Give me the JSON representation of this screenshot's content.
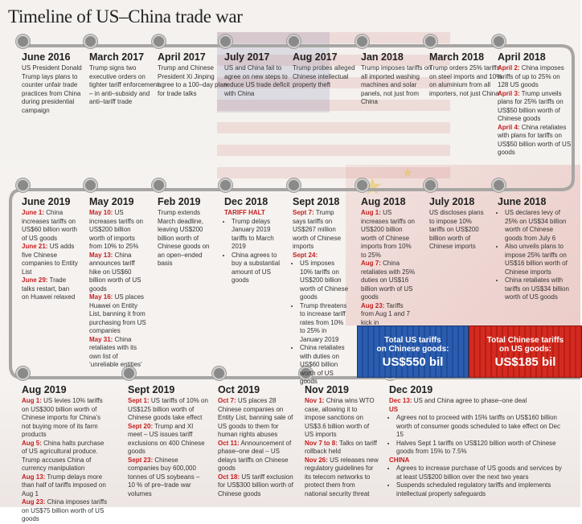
{
  "title": "Timeline of US–China trade war",
  "containers": {
    "us": {
      "label_l1": "Total US tariffs",
      "label_l2": "on Chinese goods:",
      "value": "US$550 bil"
    },
    "cn": {
      "label_l1": "Total Chinese tariffs",
      "label_l2": "on US goods:",
      "value": "US$185 bil"
    }
  },
  "row1": [
    {
      "date": "June 2016",
      "text": "US President Donald Trump lays plans to counter unfair trade practices from China during presidential campaign"
    },
    {
      "date": "March 2017",
      "text": "Trump signs two executive orders on tighter tariff enforcement – in anti–subsidy and anti–tariff trade"
    },
    {
      "date": "April 2017",
      "text": "Trump and Chinese President Xi Jinping agree to a 100–day plan for trade talks"
    },
    {
      "date": "July 2017",
      "text": "US and China fail to agree on new steps to reduce US trade deficit with China"
    },
    {
      "date": "Aug 2017",
      "text": "Trump probes alleged Chinese intellectual property theft"
    },
    {
      "date": "Jan 2018",
      "text": "Trump imposes tariffs on all imported washing machines and solar panels, not just from China"
    },
    {
      "date": "March 2018",
      "text": "Trump orders 25% tariffs on steel imports and 10% on aluminium from all importers, not just China"
    },
    {
      "date": "April 2018",
      "items": [
        {
          "k": "April 2:",
          "t": "China imposes tariffs of up to 25% on 128 US goods"
        },
        {
          "k": "April 3:",
          "t": "Trump unveils plans for 25% tariffs on US$50 billion worth of Chinese goods"
        },
        {
          "k": "April 4:",
          "t": "China retaliates with plans for tariffs on US$50 billion worth of US goods"
        }
      ]
    }
  ],
  "row2": [
    {
      "date": "June 2019",
      "items": [
        {
          "k": "June 1:",
          "t": "China increases tariffs on US$60 billion worth of US goods"
        },
        {
          "k": "June 21:",
          "t": "US adds five Chinese companies to Entity List"
        },
        {
          "k": "June 29:",
          "t": "Trade talks restart, ban on Huawei relaxed"
        }
      ]
    },
    {
      "date": "May 2019",
      "items": [
        {
          "k": "May 10:",
          "t": "US increases tariffs on US$200 billion worth of imports from 10% to 25%"
        },
        {
          "k": "May 13:",
          "t": "China announces tariff hike on US$60 billion worth of US goods"
        },
        {
          "k": "May 16:",
          "t": "US places Huawei on Entity List, banning it from purchasing from US companies"
        },
        {
          "k": "May 31:",
          "t": "China retaliates with its own list of ‘unreliable entities’"
        }
      ]
    },
    {
      "date": "Feb 2019",
      "text": "Trump extends March deadline, leaving US$200 billion worth of Chinese goods on an open–ended basis"
    },
    {
      "date": "Dec 2018",
      "sub": "TARIFF HALT",
      "bullets": [
        "Trump delays January 2019 tariffs to March 2019",
        "China agrees to buy a substantial amount of US goods"
      ]
    },
    {
      "date": "Sept 2018",
      "items": [
        {
          "k": "Sept 7:",
          "t": "Trump says tariffs on US$267 million worth of Chinese imports"
        },
        {
          "k": "Sept 24:",
          "t": ""
        }
      ],
      "bullets": [
        "US imposes 10% tariffs on US$200 billion worth of Chinese goods",
        "Trump threatens to increase tariff rates from 10% to 25% in January 2019",
        "China retaliates with duties on US$60 billion worth of US goods"
      ]
    },
    {
      "date": "Aug 2018",
      "items": [
        {
          "k": "Aug 1:",
          "t": "US increases tariffs on US$200 billion worth of Chinese imports from 10% to 25%"
        },
        {
          "k": "Aug 7:",
          "t": "China retaliates with 25% duties on US$16 billion worth of US goods"
        },
        {
          "k": "Aug 23:",
          "t": "Tariffs from Aug 1 and 7 kick in"
        }
      ]
    },
    {
      "date": "July 2018",
      "text": "US discloses plans to impose 10% tariffs on US$200 billion worth of Chinese imports"
    },
    {
      "date": "June 2018",
      "bullets": [
        "US declares levy of 25% on US$34 billion worth of Chinese goods from July 6",
        "Also unveils plans to impose 25% tariffs on US$16 billion worth of Chinese imports",
        "China retaliates with tariffs on US$34 billion worth of US goods"
      ]
    }
  ],
  "row3": [
    {
      "date": "Aug 2019",
      "items": [
        {
          "k": "Aug 1:",
          "t": "US levies 10% tariffs on US$300 billion worth of Chinese imports for China's not buying more of its farm products"
        },
        {
          "k": "Aug 5:",
          "t": "China halts purchase of US agricultural produce. Trump accuses China of currency manipulation"
        },
        {
          "k": "Aug 13:",
          "t": "Trump delays more than half of tariffs imposed on Aug 1"
        },
        {
          "k": "Aug 23:",
          "t": "China imposes tariffs on US$75 billion worth of US goods"
        }
      ]
    },
    {
      "date": "Sept 2019",
      "items": [
        {
          "k": "Sept 1:",
          "t": "US tariffs of 10% on US$125 billion worth of Chinese goods take effect"
        },
        {
          "k": "Sept 20:",
          "t": "Trump and XI meet – US issues tariff exclusions on 400 Chinese goods"
        },
        {
          "k": "Sept 23:",
          "t": "Chinese companies buy 600,000 tonnes of US soybeans – 10 % of pre–trade war volumes"
        }
      ]
    },
    {
      "date": "Oct 2019",
      "items": [
        {
          "k": "Oct 7:",
          "t": "US places 28 Chinese companies on Entity List, banning sale of US goods to them for human rights abuses"
        },
        {
          "k": "Oct 11:",
          "t": "Announcement of phase–one deal – US delays tariffs on Chinese goods"
        },
        {
          "k": "Oct 18:",
          "t": "US tariff exclusion for US$300 billion worth of Chinese goods"
        }
      ]
    },
    {
      "date": "Nov 2019",
      "items": [
        {
          "k": "Nov 1:",
          "t": "China wins WTO case, allowing it to impose sanctions on US$3.6 billion worth of US imports"
        },
        {
          "k": "Nov 7 to 8:",
          "t": "Talks on tariff rollback held"
        },
        {
          "k": "Nov 26:",
          "t": "US releases new regulatory guidelines for its telecom networks to protect them from national security threat"
        }
      ]
    },
    {
      "date": "Dec 2019",
      "lead_k": "Dec 13:",
      "lead_t": "US and China agree to phase–one deal",
      "us_label": "US",
      "us_bullets": [
        "Agrees not to proceed with 15% tariffs on US$160 billion worth of consumer goods scheduled to take effect on Dec 15",
        "Halves Sept 1 tariffs on US$120 billion worth of Chinese goods from 15% to 7.5%"
      ],
      "cn_label": "CHINA",
      "cn_bullets": [
        "Agrees to increase purchase of US goods and services by at least US$200 billion over the next two years",
        "Suspends scheduled regulatory tariffs and implements intellectual property safeguards"
      ]
    }
  ],
  "colors": {
    "accent": "#c41f1f",
    "us_blue": "#2a5db0",
    "cn_red": "#d42a1f",
    "line": "#a7a6a4"
  }
}
